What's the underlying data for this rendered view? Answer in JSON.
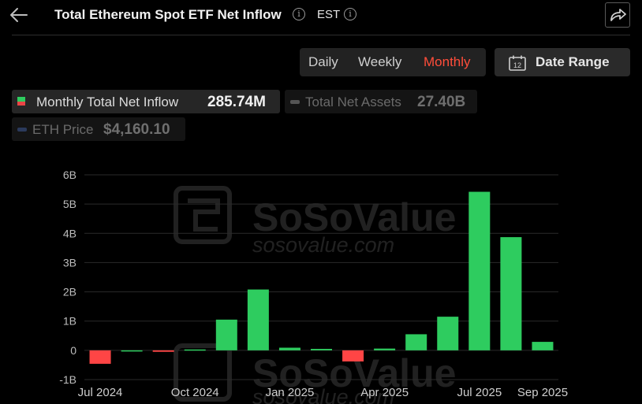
{
  "header": {
    "title": "Total Ethereum Spot ETF Net Inflow",
    "timezone": "EST",
    "back_icon": "arrow-left-icon",
    "share_icon": "share-icon"
  },
  "controls": {
    "tabs": [
      {
        "label": "Daily",
        "active": false
      },
      {
        "label": "Weekly",
        "active": false
      },
      {
        "label": "Monthly",
        "active": true
      }
    ],
    "date_range_label": "Date Range",
    "calendar_day": "12"
  },
  "legend_chips": [
    {
      "label": "Monthly Total Net Inflow",
      "value": "285.74M",
      "active": true
    },
    {
      "label": "Total Net Assets",
      "value": "27.40B",
      "active": false
    },
    {
      "label": "ETH Price",
      "value": "$4,160.10",
      "active": false
    }
  ],
  "colors": {
    "positive": "#2ecc5f",
    "negative": "#ff4545",
    "active_tab": "#ff4d3a",
    "background": "#000000"
  },
  "watermark": {
    "brand": "SoSoValue",
    "url": "sosovalue.com"
  },
  "chart_data": {
    "type": "bar",
    "title": "Total Ethereum Spot ETF Net Inflow",
    "categories": [
      "Jul 2024",
      "Aug 2024",
      "Sep 2024",
      "Oct 2024",
      "Nov 2024",
      "Dec 2024",
      "Jan 2025",
      "Feb 2025",
      "Mar 2025",
      "Apr 2025",
      "May 2025",
      "Jun 2025",
      "Jul 2025",
      "Aug 2025",
      "Sep 2025"
    ],
    "x_tick_labels": [
      "Jul 2024",
      "",
      "",
      "Oct 2024",
      "",
      "",
      "Jan 2025",
      "",
      "",
      "Apr 2025",
      "",
      "",
      "Jul 2025",
      "",
      "Sep 2025"
    ],
    "series": [
      {
        "name": "Monthly Total Net Inflow",
        "values": [
          -0.46,
          0,
          -0.05,
          0.03,
          1.05,
          2.08,
          0.09,
          0.05,
          -0.38,
          0.06,
          0.55,
          1.15,
          5.42,
          3.87,
          0.29
        ]
      }
    ],
    "unit": "B",
    "y_ticks": [
      "6B",
      "5B",
      "4B",
      "3B",
      "2B",
      "1B",
      "0",
      "-1B"
    ],
    "ylim": [
      -1,
      6
    ],
    "grid": true,
    "legend": "top-left"
  }
}
